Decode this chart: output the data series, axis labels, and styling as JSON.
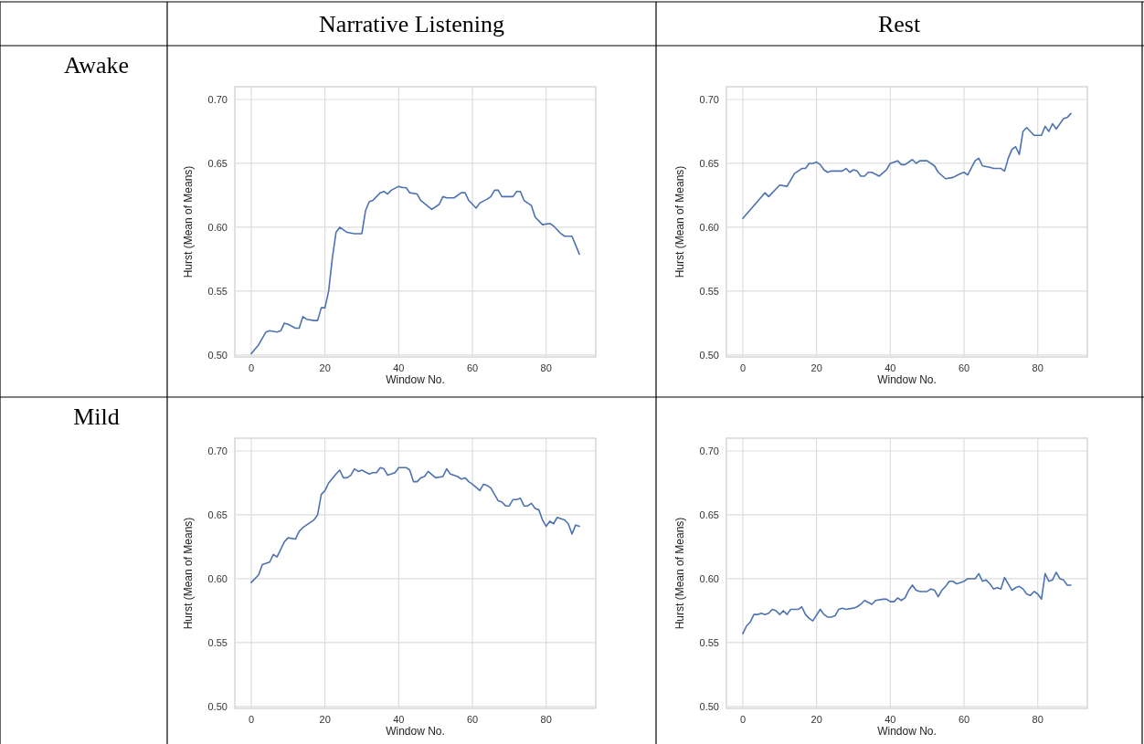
{
  "chart_data": [
    {
      "type": "other",
      "annotations": [
        "Narrative Listening",
        "Rest",
        "Awake",
        "Mild"
      ]
    },
    {
      "type": "line",
      "xlabel": "Window No.",
      "ylabel": "Hurst (Mean of Means)",
      "xlim": [
        -4.45,
        93.45
      ],
      "ylim": [
        0.4985,
        0.71
      ],
      "xticks": [
        0,
        20,
        40,
        60,
        80
      ],
      "yticks": [
        {
          "value": 0.5,
          "label": "0.50"
        },
        {
          "value": 0.55,
          "label": "0.55"
        },
        {
          "value": 0.6,
          "label": "0.60"
        },
        {
          "value": 0.65,
          "label": "0.65"
        },
        {
          "value": 0.7,
          "label": "0.70"
        }
      ],
      "grid": true,
      "series": [
        {
          "color": "#4c72b0",
          "x": [
            0,
            2,
            4,
            5,
            7,
            8,
            9,
            10,
            12,
            13,
            14,
            15,
            17,
            18,
            19,
            20,
            21,
            22,
            23,
            24,
            26,
            28,
            30,
            31,
            32,
            33,
            35,
            36,
            37,
            38,
            40,
            41,
            42,
            43,
            45,
            46,
            49,
            51,
            52,
            53,
            55,
            57,
            58,
            59,
            61,
            62,
            64,
            65,
            66,
            67,
            68,
            71,
            72,
            73,
            74,
            76,
            77,
            79,
            81,
            82,
            84,
            85,
            87,
            89
          ],
          "values": [
            0.501,
            0.508,
            0.518,
            0.519,
            0.518,
            0.519,
            0.525,
            0.524,
            0.521,
            0.521,
            0.53,
            0.528,
            0.527,
            0.527,
            0.537,
            0.537,
            0.55,
            0.576,
            0.596,
            0.6,
            0.596,
            0.595,
            0.595,
            0.613,
            0.62,
            0.621,
            0.627,
            0.628,
            0.626,
            0.629,
            0.632,
            0.631,
            0.631,
            0.627,
            0.626,
            0.621,
            0.614,
            0.618,
            0.624,
            0.623,
            0.623,
            0.627,
            0.627,
            0.621,
            0.615,
            0.619,
            0.622,
            0.624,
            0.629,
            0.629,
            0.624,
            0.624,
            0.628,
            0.628,
            0.621,
            0.617,
            0.608,
            0.602,
            0.603,
            0.601,
            0.595,
            0.593,
            0.593,
            0.579
          ]
        }
      ]
    },
    {
      "type": "line",
      "xlabel": "Window No.",
      "ylabel": "Hurst (Mean of Means)",
      "xlim": [
        -4.45,
        93.45
      ],
      "ylim": [
        0.4985,
        0.71
      ],
      "xticks": [
        0,
        20,
        40,
        60,
        80
      ],
      "yticks": [
        {
          "value": 0.5,
          "label": "0.50"
        },
        {
          "value": 0.55,
          "label": "0.55"
        },
        {
          "value": 0.6,
          "label": "0.60"
        },
        {
          "value": 0.65,
          "label": "0.65"
        },
        {
          "value": 0.7,
          "label": "0.70"
        }
      ],
      "grid": true,
      "series": [
        {
          "color": "#4c72b0",
          "x": [
            0,
            6,
            7,
            10,
            12,
            14,
            16,
            17,
            18,
            19,
            20,
            21,
            22,
            23,
            24,
            27,
            28,
            29,
            30,
            31,
            32,
            33,
            34,
            35,
            37,
            39,
            40,
            42,
            43,
            44,
            46,
            47,
            48,
            50,
            52,
            53,
            55,
            57,
            59,
            60,
            61,
            63,
            64,
            65,
            67,
            68,
            70,
            71,
            72,
            73,
            74,
            75,
            76,
            77,
            78,
            79,
            81,
            82,
            83,
            84,
            85,
            87,
            88,
            89
          ],
          "values": [
            0.607,
            0.627,
            0.624,
            0.633,
            0.632,
            0.642,
            0.646,
            0.646,
            0.65,
            0.65,
            0.651,
            0.649,
            0.645,
            0.643,
            0.644,
            0.644,
            0.646,
            0.643,
            0.645,
            0.644,
            0.64,
            0.64,
            0.643,
            0.643,
            0.64,
            0.645,
            0.65,
            0.652,
            0.649,
            0.649,
            0.653,
            0.65,
            0.652,
            0.652,
            0.648,
            0.643,
            0.638,
            0.639,
            0.642,
            0.643,
            0.641,
            0.652,
            0.654,
            0.648,
            0.647,
            0.646,
            0.646,
            0.644,
            0.654,
            0.661,
            0.663,
            0.657,
            0.675,
            0.678,
            0.675,
            0.672,
            0.672,
            0.679,
            0.675,
            0.681,
            0.677,
            0.685,
            0.686,
            0.689
          ]
        }
      ]
    },
    {
      "type": "line",
      "xlabel": "Window No.",
      "ylabel": "Hurst (Mean of Means)",
      "xlim": [
        -4.45,
        93.45
      ],
      "ylim": [
        0.4985,
        0.71
      ],
      "xticks": [
        0,
        20,
        40,
        60,
        80
      ],
      "yticks": [
        {
          "value": 0.5,
          "label": "0.50"
        },
        {
          "value": 0.55,
          "label": "0.55"
        },
        {
          "value": 0.6,
          "label": "0.60"
        },
        {
          "value": 0.65,
          "label": "0.65"
        },
        {
          "value": 0.7,
          "label": "0.70"
        }
      ],
      "grid": true,
      "series": [
        {
          "color": "#4c72b0",
          "x": [
            0,
            2,
            3,
            5,
            6,
            7,
            9,
            10,
            12,
            13,
            14,
            16,
            17,
            18,
            19,
            20,
            21,
            23,
            24,
            25,
            26,
            27,
            28,
            29,
            30,
            32,
            33,
            34,
            35,
            36,
            37,
            39,
            40,
            42,
            43,
            44,
            45,
            46,
            47,
            48,
            50,
            52,
            53,
            54,
            56,
            57,
            58,
            59,
            60,
            62,
            63,
            64,
            65,
            67,
            68,
            69,
            70,
            71,
            72,
            73,
            74,
            75,
            76,
            77,
            78,
            79,
            80,
            81,
            82,
            83,
            84,
            85,
            86,
            87,
            88,
            89
          ],
          "values": [
            0.597,
            0.603,
            0.611,
            0.613,
            0.619,
            0.617,
            0.629,
            0.632,
            0.631,
            0.637,
            0.64,
            0.644,
            0.646,
            0.65,
            0.666,
            0.669,
            0.675,
            0.682,
            0.685,
            0.679,
            0.679,
            0.681,
            0.686,
            0.684,
            0.685,
            0.682,
            0.683,
            0.683,
            0.687,
            0.686,
            0.681,
            0.683,
            0.687,
            0.687,
            0.685,
            0.676,
            0.676,
            0.679,
            0.68,
            0.684,
            0.679,
            0.68,
            0.686,
            0.682,
            0.68,
            0.678,
            0.679,
            0.676,
            0.674,
            0.669,
            0.674,
            0.673,
            0.671,
            0.661,
            0.66,
            0.657,
            0.657,
            0.662,
            0.662,
            0.663,
            0.657,
            0.657,
            0.659,
            0.655,
            0.654,
            0.646,
            0.641,
            0.645,
            0.643,
            0.648,
            0.647,
            0.646,
            0.643,
            0.635,
            0.642,
            0.641
          ]
        }
      ]
    },
    {
      "type": "line",
      "xlabel": "Window No.",
      "ylabel": "Hurst (Mean of Means)",
      "xlim": [
        -4.45,
        93.45
      ],
      "ylim": [
        0.4985,
        0.71
      ],
      "xticks": [
        0,
        20,
        40,
        60,
        80
      ],
      "yticks": [
        {
          "value": 0.5,
          "label": "0.50"
        },
        {
          "value": 0.55,
          "label": "0.55"
        },
        {
          "value": 0.6,
          "label": "0.60"
        },
        {
          "value": 0.65,
          "label": "0.65"
        },
        {
          "value": 0.7,
          "label": "0.70"
        }
      ],
      "grid": true,
      "series": [
        {
          "color": "#4c72b0",
          "x": [
            0,
            1,
            2,
            3,
            4,
            5,
            6,
            7,
            8,
            9,
            10,
            11,
            12,
            13,
            14,
            15,
            16,
            17,
            18,
            19,
            21,
            22,
            23,
            24,
            25,
            26,
            27,
            28,
            30,
            31,
            32,
            33,
            35,
            36,
            38,
            39,
            40,
            41,
            42,
            43,
            44,
            45,
            46,
            47,
            48,
            50,
            51,
            52,
            53,
            54,
            55,
            56,
            57,
            58,
            59,
            60,
            61,
            63,
            64,
            65,
            66,
            67,
            68,
            69,
            70,
            71,
            72,
            73,
            74,
            75,
            76,
            77,
            78,
            79,
            80,
            81,
            82,
            83,
            84,
            85,
            86,
            87,
            88,
            89
          ],
          "values": [
            0.557,
            0.563,
            0.566,
            0.572,
            0.572,
            0.573,
            0.572,
            0.573,
            0.576,
            0.575,
            0.572,
            0.575,
            0.572,
            0.576,
            0.576,
            0.576,
            0.578,
            0.572,
            0.569,
            0.567,
            0.576,
            0.572,
            0.57,
            0.57,
            0.571,
            0.576,
            0.577,
            0.576,
            0.577,
            0.578,
            0.58,
            0.583,
            0.58,
            0.583,
            0.584,
            0.584,
            0.582,
            0.582,
            0.585,
            0.583,
            0.585,
            0.591,
            0.595,
            0.591,
            0.59,
            0.59,
            0.592,
            0.591,
            0.586,
            0.591,
            0.594,
            0.598,
            0.598,
            0.596,
            0.597,
            0.598,
            0.6,
            0.6,
            0.604,
            0.598,
            0.599,
            0.596,
            0.592,
            0.593,
            0.592,
            0.601,
            0.596,
            0.591,
            0.593,
            0.594,
            0.592,
            0.588,
            0.587,
            0.59,
            0.588,
            0.584,
            0.604,
            0.598,
            0.599,
            0.605,
            0.6,
            0.599,
            0.595,
            0.595
          ]
        }
      ]
    }
  ]
}
